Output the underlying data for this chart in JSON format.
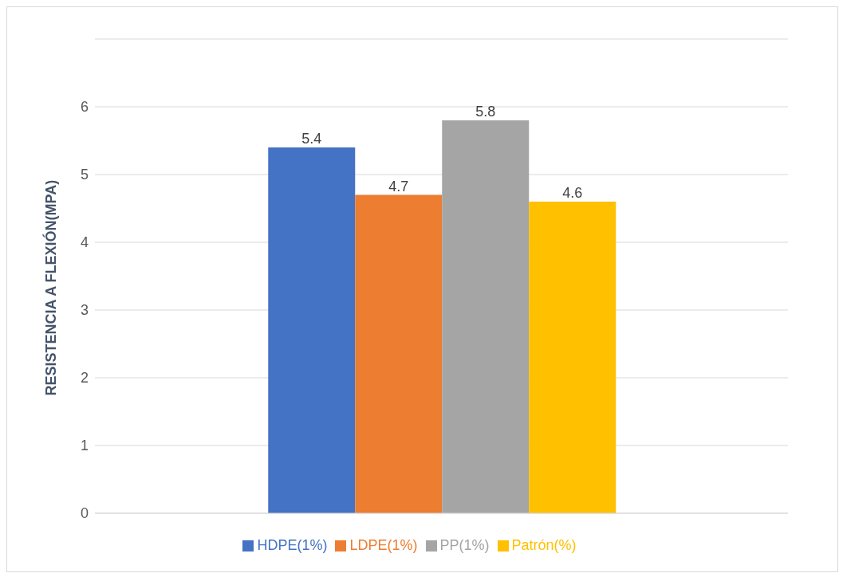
{
  "chart_data": {
    "type": "bar",
    "ylabel": "RESISTENCIA A FLEXIÓN(MPA)",
    "categories": [
      null
    ],
    "series": [
      {
        "name": "HDPE(1%)",
        "color": "#4472c4",
        "values": [
          5.4
        ]
      },
      {
        "name": "LDPE(1%)",
        "color": "#ed7d31",
        "values": [
          4.7
        ]
      },
      {
        "name": "PP(1%)",
        "color": "#a5a5a5",
        "values": [
          5.8
        ]
      },
      {
        "name": "Patrón(%)",
        "color": "#ffc000",
        "values": [
          4.6
        ]
      }
    ],
    "ylim": [
      0,
      7
    ],
    "yticks": [
      0,
      1,
      2,
      3,
      4,
      5,
      6,
      {
        "value": 7,
        "label": null
      }
    ],
    "grid": "y",
    "legend": "bottom",
    "data_labels": true
  }
}
